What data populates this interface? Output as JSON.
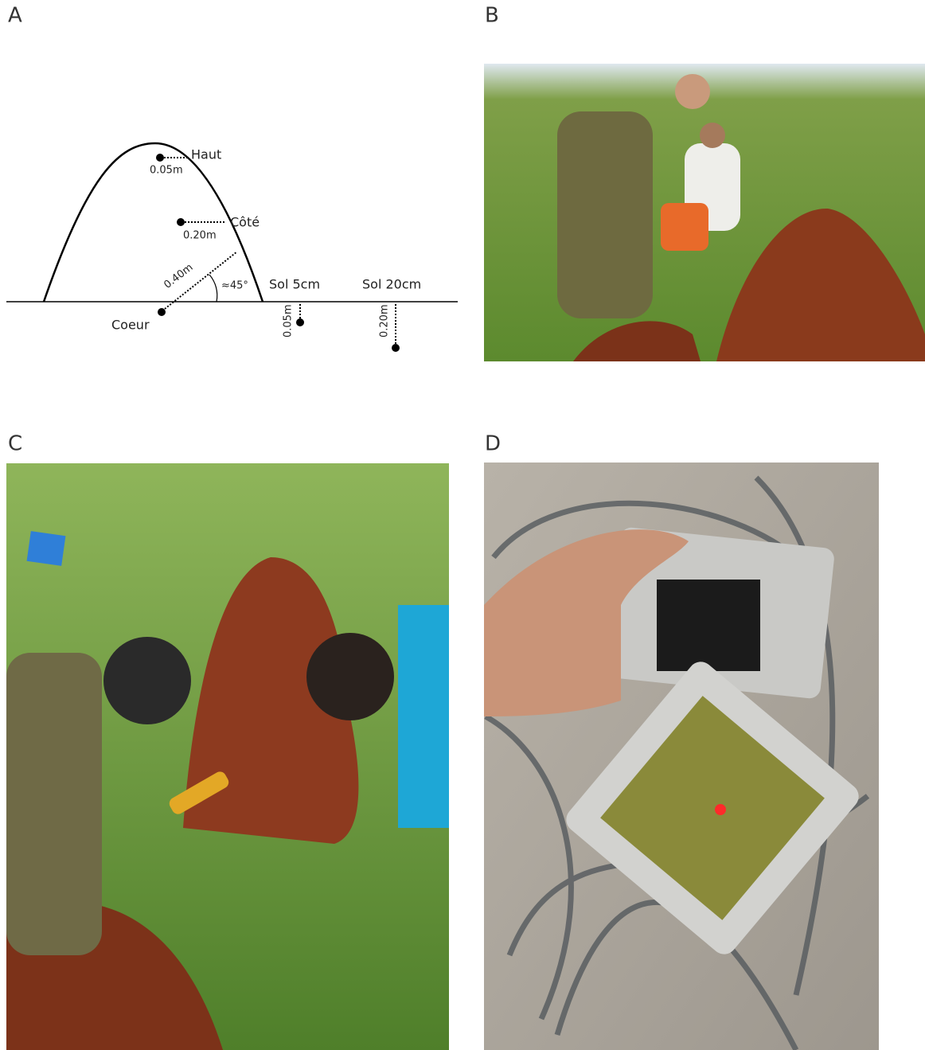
{
  "panels": [
    {
      "label": "A"
    },
    {
      "label": "B"
    },
    {
      "label": "C"
    },
    {
      "label": "D"
    }
  ],
  "diagram": {
    "top": {
      "name": "Haut",
      "depth": "0.05m"
    },
    "side": {
      "name": "Côté",
      "depth": "0.20m"
    },
    "core": {
      "name": "Coeur",
      "depth": "0.40m",
      "angle": "≈45°"
    },
    "soil_5": {
      "name": "Sol 5cm",
      "depth": "0.05m"
    },
    "soil_20": {
      "name": "Sol 20cm",
      "depth": "0.20m"
    }
  }
}
